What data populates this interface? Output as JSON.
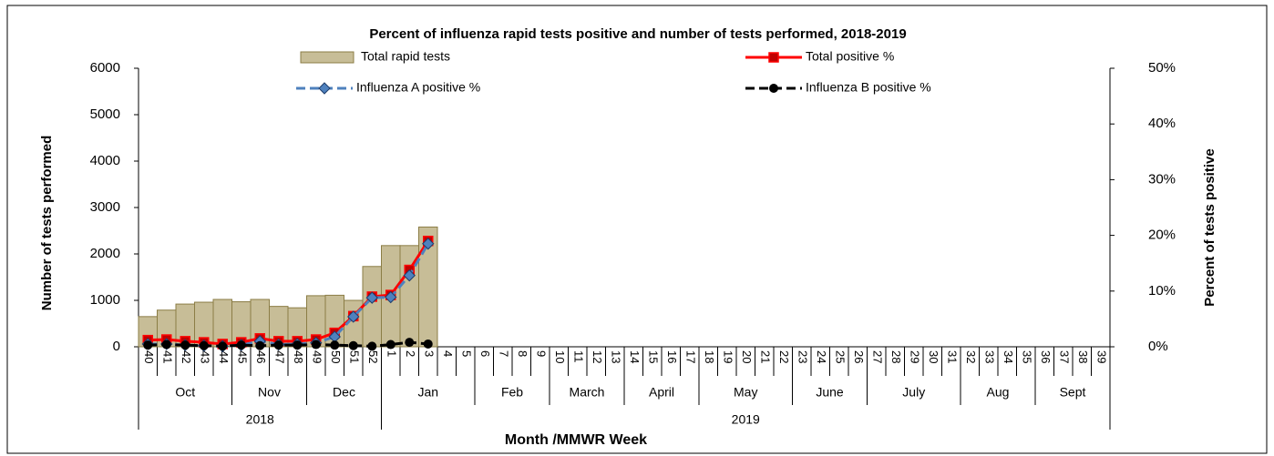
{
  "chart_data": {
    "type": "bar-line",
    "title": "Percent of influenza rapid tests positive and number of tests performed, 2018-2019",
    "y_label": "Number of tests performed",
    "y2_label": "Percent of tests positive",
    "x_label": "Month /MMWR Week",
    "categories": [
      "40",
      "41",
      "42",
      "43",
      "44",
      "45",
      "46",
      "47",
      "48",
      "49",
      "50",
      "51",
      "52",
      "1",
      "2",
      "3",
      "4",
      "5",
      "6",
      "7",
      "8",
      "9",
      "10",
      "11",
      "12",
      "13",
      "14",
      "15",
      "16",
      "17",
      "18",
      "19",
      "20",
      "21",
      "22",
      "23",
      "24",
      "25",
      "26",
      "27",
      "28",
      "29",
      "30",
      "31",
      "32",
      "33",
      "34",
      "35",
      "36",
      "37",
      "38",
      "39"
    ],
    "months": [
      {
        "label": "Oct",
        "weeks": 5
      },
      {
        "label": "Nov",
        "weeks": 4
      },
      {
        "label": "Dec",
        "weeks": 4
      },
      {
        "label": "Jan",
        "weeks": 5
      },
      {
        "label": "Feb",
        "weeks": 4
      },
      {
        "label": "March",
        "weeks": 4
      },
      {
        "label": "April",
        "weeks": 4
      },
      {
        "label": "May",
        "weeks": 5
      },
      {
        "label": "June",
        "weeks": 4
      },
      {
        "label": "July",
        "weeks": 5
      },
      {
        "label": "Aug",
        "weeks": 4
      },
      {
        "label": "Sept",
        "weeks": 4
      }
    ],
    "years": [
      {
        "label": "2018",
        "weeks": 13
      },
      {
        "label": "2019",
        "weeks": 39
      }
    ],
    "ylim": [
      0,
      6000
    ],
    "yticks": [
      0,
      1000,
      2000,
      3000,
      4000,
      5000,
      6000
    ],
    "y2lim": [
      0,
      50
    ],
    "y2ticks": [
      {
        "value": 0,
        "label": "0%"
      },
      {
        "value": 10,
        "label": "10%"
      },
      {
        "value": 20,
        "label": "20%"
      },
      {
        "value": 30,
        "label": "30%"
      },
      {
        "value": 40,
        "label": "40%"
      },
      {
        "value": 50,
        "label": "50%"
      }
    ],
    "series": [
      {
        "name": "Total rapid tests",
        "kind": "bar",
        "color": "#c7bd97",
        "values": [
          650,
          790,
          920,
          960,
          1020,
          970,
          1020,
          870,
          840,
          1100,
          1110,
          1000,
          1730,
          2180,
          2180,
          2580,
          null,
          null,
          null,
          null,
          null,
          null,
          null,
          null,
          null,
          null,
          null,
          null,
          null,
          null,
          null,
          null,
          null,
          null,
          null,
          null,
          null,
          null,
          null,
          null,
          null,
          null,
          null,
          null,
          null,
          null,
          null,
          null,
          null,
          null,
          null,
          null
        ]
      },
      {
        "name": "Total positive %",
        "kind": "line",
        "axis": "y2",
        "color": "#ff0000",
        "marker": "square",
        "values": [
          1.2,
          1.3,
          1.0,
          0.8,
          0.5,
          0.8,
          1.5,
          1.0,
          1.0,
          1.3,
          2.5,
          5.5,
          9.0,
          9.3,
          13.8,
          19.0,
          null,
          null,
          null,
          null,
          null,
          null,
          null,
          null,
          null,
          null,
          null,
          null,
          null,
          null,
          null,
          null,
          null,
          null,
          null,
          null,
          null,
          null,
          null,
          null,
          null,
          null,
          null,
          null,
          null,
          null,
          null,
          null,
          null,
          null,
          null,
          null
        ]
      },
      {
        "name": "Influenza A positive %",
        "kind": "line",
        "axis": "y2",
        "color": "#4f81bd",
        "marker": "diamond",
        "values": [
          0.5,
          0.5,
          0.3,
          0.2,
          0.1,
          0.3,
          1.0,
          0.4,
          0.5,
          0.7,
          1.8,
          5.4,
          8.8,
          8.9,
          12.8,
          18.5,
          null,
          null,
          null,
          null,
          null,
          null,
          null,
          null,
          null,
          null,
          null,
          null,
          null,
          null,
          null,
          null,
          null,
          null,
          null,
          null,
          null,
          null,
          null,
          null,
          null,
          null,
          null,
          null,
          null,
          null,
          null,
          null,
          null,
          null,
          null,
          null
        ]
      },
      {
        "name": "Influenza B positive %",
        "kind": "line",
        "axis": "y2",
        "color": "#000000",
        "marker": "circle",
        "values": [
          0.3,
          0.4,
          0.3,
          0.2,
          0.1,
          0.3,
          0.2,
          0.3,
          0.3,
          0.4,
          0.3,
          0.2,
          0.1,
          0.4,
          0.8,
          0.5,
          null,
          null,
          null,
          null,
          null,
          null,
          null,
          null,
          null,
          null,
          null,
          null,
          null,
          null,
          null,
          null,
          null,
          null,
          null,
          null,
          null,
          null,
          null,
          null,
          null,
          null,
          null,
          null,
          null,
          null,
          null,
          null,
          null,
          null,
          null,
          null
        ]
      }
    ]
  }
}
